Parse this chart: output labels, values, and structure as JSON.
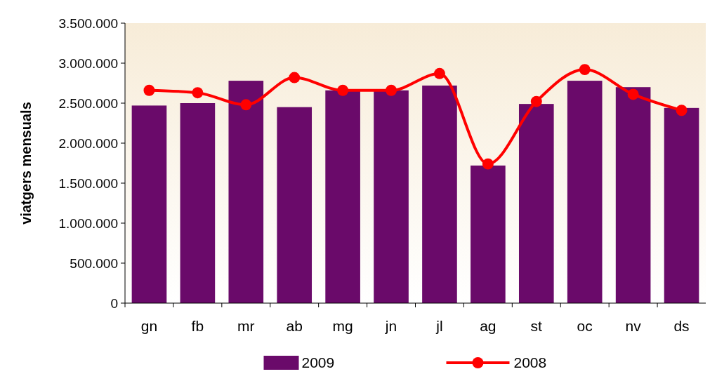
{
  "chart_data": {
    "type": "bar",
    "ylabel": "viatgers mensuals",
    "categories": [
      "gn",
      "fb",
      "mr",
      "ab",
      "mg",
      "jn",
      "jl",
      "ag",
      "st",
      "oc",
      "nv",
      "ds"
    ],
    "series": [
      {
        "name": "2009",
        "color": "#6a0a6a",
        "values": [
          2470000,
          2500000,
          2780000,
          2450000,
          2660000,
          2660000,
          2720000,
          1720000,
          2490000,
          2780000,
          2700000,
          2440000
        ]
      },
      {
        "name": "2008",
        "type": "line",
        "color": "#ff0000",
        "marker": "circle",
        "values": [
          2660000,
          2630000,
          2480000,
          2820000,
          2660000,
          2660000,
          2870000,
          1740000,
          2520000,
          2920000,
          2610000,
          2410000
        ]
      }
    ],
    "ylim": [
      0,
      3500000
    ],
    "yticks": [
      {
        "value": 0,
        "label": "0"
      },
      {
        "value": 500000,
        "label": "500.000"
      },
      {
        "value": 1000000,
        "label": "1.000.000"
      },
      {
        "value": 1500000,
        "label": "1.500.000"
      },
      {
        "value": 2000000,
        "label": "2.000.000"
      },
      {
        "value": 2500000,
        "label": "2.500.000"
      },
      {
        "value": 3000000,
        "label": "3.000.000"
      },
      {
        "value": 3500000,
        "label": "3.500.000"
      }
    ],
    "legend": "bottom",
    "grid": false
  }
}
